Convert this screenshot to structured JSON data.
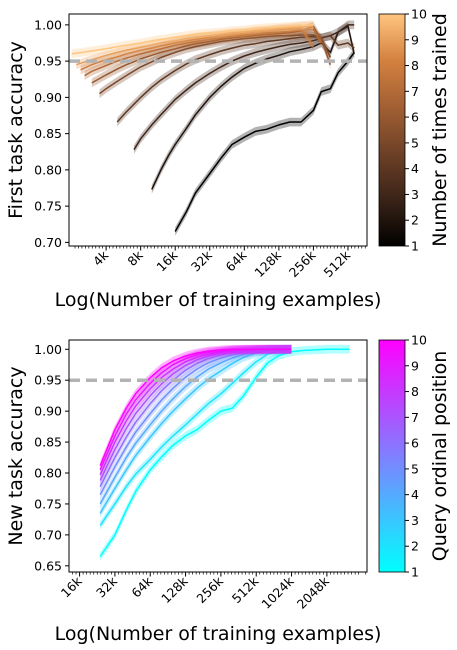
{
  "chart_data": [
    {
      "type": "line",
      "xlabel": "Log(Number of training examples)",
      "ylabel": "First task accuracy",
      "x_scale": "log2",
      "xlim": [
        1.9,
        750
      ],
      "ylim": [
        0.695,
        1.015
      ],
      "x_ticks": [
        4,
        8,
        16,
        32,
        64,
        128,
        256,
        512
      ],
      "x_tick_labels": [
        "4k",
        "8k",
        "16k",
        "32k",
        "64k",
        "128k",
        "256k",
        "512k"
      ],
      "y_ticks": [
        0.7,
        0.75,
        0.8,
        0.85,
        0.9,
        0.95,
        1.0
      ],
      "y_tick_labels": [
        "0.70",
        "0.75",
        "0.80",
        "0.85",
        "0.90",
        "0.95",
        "1.00"
      ],
      "threshold": 0.95,
      "colorbar": {
        "label": "Number of times trained",
        "min": 1,
        "max": 10,
        "ticks": [
          "1",
          "2",
          "3",
          "4",
          "5",
          "6",
          "7",
          "8",
          "9",
          "10"
        ],
        "colors": [
          "#000000",
          "#3a2317",
          "#6e4127",
          "#a26033",
          "#d4813f",
          "#ffc680"
        ]
      },
      "series": [
        {
          "c": 1,
          "x": [
            16,
            20,
            24,
            32,
            40,
            50,
            64,
            80,
            100,
            128,
            160,
            200,
            256,
            300,
            360,
            420,
            512,
            580
          ],
          "y": [
            0.715,
            0.742,
            0.768,
            0.795,
            0.816,
            0.835,
            0.845,
            0.853,
            0.856,
            0.862,
            0.866,
            0.866,
            0.882,
            0.908,
            0.912,
            0.934,
            0.95,
            0.962
          ]
        },
        {
          "c": 2,
          "x": [
            10,
            12,
            14,
            16,
            20,
            24,
            32,
            40,
            50,
            64,
            80,
            100,
            128,
            160,
            200,
            256,
            300,
            360,
            420,
            512,
            580
          ],
          "y": [
            0.773,
            0.8,
            0.82,
            0.835,
            0.857,
            0.876,
            0.9,
            0.915,
            0.928,
            0.94,
            0.947,
            0.953,
            0.958,
            0.963,
            0.966,
            0.97,
            0.975,
            0.962,
            0.99,
            0.998,
            0.96
          ]
        },
        {
          "c": 3,
          "x": [
            7,
            8,
            10,
            12,
            16,
            20,
            24,
            32,
            40,
            50,
            64,
            80,
            100,
            128,
            160,
            200,
            256,
            300,
            360,
            420,
            512,
            580
          ],
          "y": [
            0.828,
            0.843,
            0.862,
            0.876,
            0.897,
            0.91,
            0.92,
            0.933,
            0.942,
            0.95,
            0.957,
            0.962,
            0.966,
            0.97,
            0.973,
            0.975,
            0.978,
            0.982,
            0.985,
            0.99,
            1.0,
            1.0
          ]
        },
        {
          "c": 4,
          "x": [
            5,
            6,
            8,
            10,
            12,
            16,
            20,
            24,
            32,
            40,
            50,
            64,
            80,
            100,
            128,
            160,
            200,
            256,
            300,
            360,
            420,
            512,
            580
          ],
          "y": [
            0.866,
            0.88,
            0.9,
            0.914,
            0.924,
            0.937,
            0.946,
            0.952,
            0.959,
            0.964,
            0.968,
            0.972,
            0.974,
            0.977,
            0.979,
            0.981,
            0.983,
            0.984,
            0.982,
            0.985,
            0.972,
            0.975,
            0.968
          ]
        },
        {
          "c": 5,
          "x": [
            3.5,
            4,
            5,
            6,
            8,
            10,
            12,
            16,
            20,
            24,
            32,
            40,
            50,
            64,
            80,
            100,
            128,
            160,
            200,
            256,
            300,
            360
          ],
          "y": [
            0.905,
            0.912,
            0.922,
            0.93,
            0.942,
            0.949,
            0.955,
            0.962,
            0.967,
            0.97,
            0.974,
            0.977,
            0.979,
            0.981,
            0.982,
            0.984,
            0.985,
            0.985,
            0.986,
            0.986,
            0.982,
            0.955
          ]
        },
        {
          "c": 6,
          "x": [
            3,
            4,
            5,
            6,
            8,
            10,
            12,
            16,
            20,
            24,
            32,
            40,
            50,
            64,
            80,
            100,
            128,
            160,
            200,
            256,
            300,
            360
          ],
          "y": [
            0.92,
            0.931,
            0.939,
            0.945,
            0.953,
            0.958,
            0.962,
            0.967,
            0.971,
            0.974,
            0.977,
            0.98,
            0.982,
            0.984,
            0.985,
            0.987,
            0.988,
            0.989,
            0.992,
            0.998,
            0.98,
            0.945
          ]
        },
        {
          "c": 7,
          "x": [
            2.6,
            3,
            4,
            5,
            6,
            8,
            10,
            12,
            16,
            20,
            24,
            32,
            40,
            50,
            64,
            80,
            100,
            128,
            160,
            200,
            256,
            300
          ],
          "y": [
            0.93,
            0.936,
            0.944,
            0.95,
            0.954,
            0.96,
            0.964,
            0.967,
            0.972,
            0.975,
            0.977,
            0.98,
            0.982,
            0.984,
            0.986,
            0.987,
            0.989,
            0.99,
            0.991,
            0.993,
            0.994,
            0.975
          ]
        },
        {
          "c": 8,
          "x": [
            2.4,
            3,
            4,
            5,
            6,
            8,
            10,
            12,
            16,
            20,
            24,
            32,
            40,
            50,
            64,
            80,
            100,
            128,
            160,
            200,
            256
          ],
          "y": [
            0.938,
            0.945,
            0.952,
            0.956,
            0.96,
            0.965,
            0.968,
            0.971,
            0.975,
            0.978,
            0.98,
            0.983,
            0.985,
            0.987,
            0.988,
            0.99,
            0.991,
            0.993,
            0.994,
            0.995,
            0.97
          ]
        },
        {
          "c": 9,
          "x": [
            2.2,
            3,
            4,
            5,
            6,
            8,
            10,
            12,
            16,
            20,
            24,
            32,
            40,
            50,
            64,
            80,
            100,
            128,
            160,
            200,
            256
          ],
          "y": [
            0.945,
            0.952,
            0.958,
            0.962,
            0.965,
            0.969,
            0.972,
            0.975,
            0.978,
            0.981,
            0.983,
            0.985,
            0.987,
            0.989,
            0.99,
            0.992,
            0.993,
            0.995,
            0.996,
            0.998,
            0.999
          ]
        },
        {
          "c": 10,
          "x": [
            2,
            3,
            4,
            5,
            6,
            8,
            10,
            12,
            16,
            20,
            24,
            32,
            40,
            50,
            64,
            80,
            100,
            128,
            160,
            200,
            256
          ],
          "y": [
            0.96,
            0.964,
            0.967,
            0.97,
            0.972,
            0.975,
            0.978,
            0.98,
            0.983,
            0.985,
            0.987,
            0.989,
            0.99,
            0.992,
            0.993,
            0.995,
            0.996,
            0.997,
            0.998,
            0.999,
            1.0
          ]
        }
      ]
    },
    {
      "type": "line",
      "xlabel": "Log(Number of training examples)",
      "ylabel": "New task accuracy",
      "x_scale": "log2",
      "xlim": [
        13,
        4500
      ],
      "ylim": [
        0.64,
        1.015
      ],
      "x_ticks": [
        16,
        32,
        64,
        128,
        256,
        512,
        1024,
        2048
      ],
      "x_tick_labels": [
        "16k",
        "32k",
        "64k",
        "128k",
        "256k",
        "512k",
        "1024k",
        "2048k"
      ],
      "y_ticks": [
        0.65,
        0.7,
        0.75,
        0.8,
        0.85,
        0.9,
        0.95,
        1.0
      ],
      "y_tick_labels": [
        "0.65",
        "0.70",
        "0.75",
        "0.80",
        "0.85",
        "0.90",
        "0.95",
        "1.00"
      ],
      "threshold": 0.95,
      "colorbar": {
        "label": "Query ordinal position",
        "min": 1,
        "max": 10,
        "ticks": [
          "1",
          "2",
          "3",
          "4",
          "5",
          "6",
          "7",
          "8",
          "9",
          "10"
        ],
        "colors": [
          "#00ffff",
          "#ff00ff"
        ]
      },
      "series": [
        {
          "c": 1,
          "x": [
            24,
            32,
            40,
            48,
            64,
            80,
            100,
            128,
            160,
            200,
            256,
            320,
            400,
            512,
            640,
            800,
            1024,
            1280,
            1600,
            2048,
            2600,
            3200
          ],
          "y": [
            0.665,
            0.7,
            0.74,
            0.77,
            0.805,
            0.826,
            0.845,
            0.86,
            0.87,
            0.885,
            0.9,
            0.905,
            0.925,
            0.955,
            0.978,
            0.99,
            0.996,
            0.998,
            0.999,
            1.0,
            1.0,
            1.0
          ]
        },
        {
          "c": 2,
          "x": [
            24,
            32,
            40,
            48,
            64,
            80,
            100,
            128,
            160,
            200,
            256,
            320,
            400,
            512,
            640,
            800,
            1024
          ],
          "y": [
            0.715,
            0.75,
            0.778,
            0.798,
            0.822,
            0.842,
            0.86,
            0.878,
            0.895,
            0.912,
            0.928,
            0.945,
            0.962,
            0.98,
            0.992,
            0.997,
            1.0
          ]
        },
        {
          "c": 3,
          "x": [
            24,
            32,
            40,
            48,
            64,
            80,
            100,
            128,
            160,
            200,
            256,
            320,
            400,
            512,
            640,
            800,
            1024
          ],
          "y": [
            0.735,
            0.775,
            0.805,
            0.828,
            0.858,
            0.88,
            0.9,
            0.92,
            0.937,
            0.952,
            0.965,
            0.977,
            0.987,
            0.994,
            0.998,
            0.999,
            1.0
          ]
        },
        {
          "c": 4,
          "x": [
            24,
            32,
            40,
            48,
            64,
            80,
            100,
            128,
            160,
            200,
            256,
            320,
            400,
            512,
            640,
            800,
            1024
          ],
          "y": [
            0.75,
            0.793,
            0.825,
            0.848,
            0.878,
            0.9,
            0.92,
            0.94,
            0.955,
            0.968,
            0.978,
            0.986,
            0.992,
            0.996,
            0.998,
            0.999,
            1.0
          ]
        },
        {
          "c": 5,
          "x": [
            24,
            32,
            40,
            48,
            64,
            80,
            100,
            128,
            160,
            200,
            256,
            320,
            400,
            512,
            640,
            800,
            1024
          ],
          "y": [
            0.765,
            0.81,
            0.842,
            0.866,
            0.896,
            0.918,
            0.937,
            0.955,
            0.968,
            0.978,
            0.986,
            0.991,
            0.995,
            0.998,
            0.999,
            1.0,
            1.0
          ]
        },
        {
          "c": 6,
          "x": [
            24,
            32,
            40,
            48,
            64,
            80,
            100,
            128,
            160,
            200,
            256,
            320,
            400,
            512,
            640,
            800,
            1024
          ],
          "y": [
            0.778,
            0.825,
            0.858,
            0.882,
            0.912,
            0.933,
            0.95,
            0.966,
            0.977,
            0.985,
            0.991,
            0.995,
            0.997,
            0.999,
            1.0,
            1.0,
            1.0
          ]
        },
        {
          "c": 7,
          "x": [
            24,
            32,
            40,
            48,
            64,
            80,
            100,
            128,
            160,
            200,
            256,
            320,
            400,
            512,
            640,
            800,
            1024
          ],
          "y": [
            0.788,
            0.838,
            0.872,
            0.896,
            0.925,
            0.944,
            0.96,
            0.974,
            0.983,
            0.989,
            0.994,
            0.997,
            0.998,
            0.999,
            1.0,
            1.0,
            1.0
          ]
        },
        {
          "c": 8,
          "x": [
            24,
            32,
            40,
            48,
            64,
            80,
            100,
            128,
            160,
            200,
            256,
            320,
            400,
            512,
            640,
            800,
            1024
          ],
          "y": [
            0.797,
            0.85,
            0.884,
            0.908,
            0.936,
            0.954,
            0.968,
            0.98,
            0.987,
            0.992,
            0.996,
            0.998,
            0.999,
            1.0,
            1.0,
            1.0,
            1.0
          ]
        },
        {
          "c": 9,
          "x": [
            24,
            32,
            40,
            48,
            64,
            80,
            100,
            128,
            160,
            200,
            256,
            320,
            400,
            512,
            640,
            800,
            1024
          ],
          "y": [
            0.805,
            0.86,
            0.895,
            0.918,
            0.945,
            0.962,
            0.975,
            0.985,
            0.991,
            0.995,
            0.997,
            0.999,
            1.0,
            1.0,
            1.0,
            1.0,
            1.0
          ]
        },
        {
          "c": 10,
          "x": [
            24,
            32,
            40,
            48,
            64,
            80,
            100,
            128,
            160,
            200,
            256,
            320,
            400,
            512,
            640,
            800,
            1024
          ],
          "y": [
            0.812,
            0.87,
            0.905,
            0.928,
            0.954,
            0.97,
            0.981,
            0.989,
            0.994,
            0.997,
            0.999,
            1.0,
            1.0,
            1.0,
            1.0,
            1.0,
            1.0
          ]
        }
      ]
    }
  ]
}
